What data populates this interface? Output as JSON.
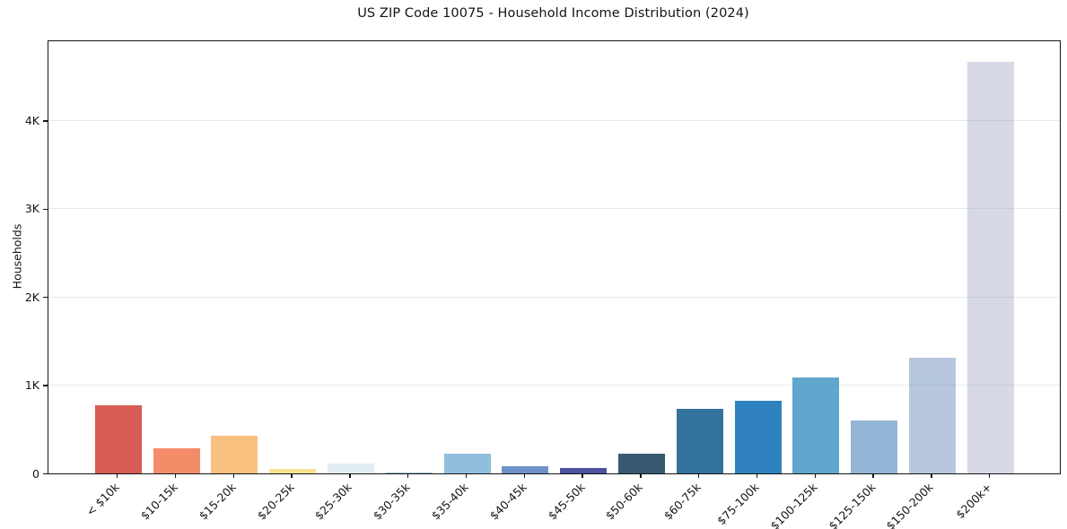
{
  "chart_data": {
    "type": "bar",
    "title": "US ZIP Code 10075 - Household Income Distribution (2024)",
    "xlabel": "",
    "ylabel": "Households",
    "categories": [
      "< $10k",
      "$10-15k",
      "$15-20k",
      "$20-25k",
      "$25-30k",
      "$30-35k",
      "$35-40k",
      "$40-45k",
      "$45-50k",
      "$50-60k",
      "$60-75k",
      "$75-100k",
      "$100-125k",
      "$125-150k",
      "$150-200k",
      "$200k+"
    ],
    "values": [
      770,
      280,
      430,
      50,
      115,
      15,
      225,
      85,
      65,
      225,
      730,
      820,
      1090,
      600,
      1310,
      4665
    ],
    "bar_colors": [
      "#d65c55",
      "#f48c69",
      "#fac080",
      "#fbe293",
      "#e3eef4",
      "#9fbac4",
      "#92bede",
      "#6e92c8",
      "#4d519e",
      "#375a70",
      "#33729c",
      "#2f82be",
      "#5fa7cd",
      "#93b5d5",
      "#b6c7de",
      "#d7d9e6"
    ],
    "yticks": [
      0,
      1000,
      2000,
      3000,
      4000
    ],
    "ytick_labels": [
      "0",
      "1K",
      "2K",
      "3K",
      "4K"
    ],
    "ylim": [
      0,
      4900
    ],
    "grid": "horizontal",
    "legend_position": "none",
    "background": "#ffffff",
    "axis_color": "#141414"
  }
}
